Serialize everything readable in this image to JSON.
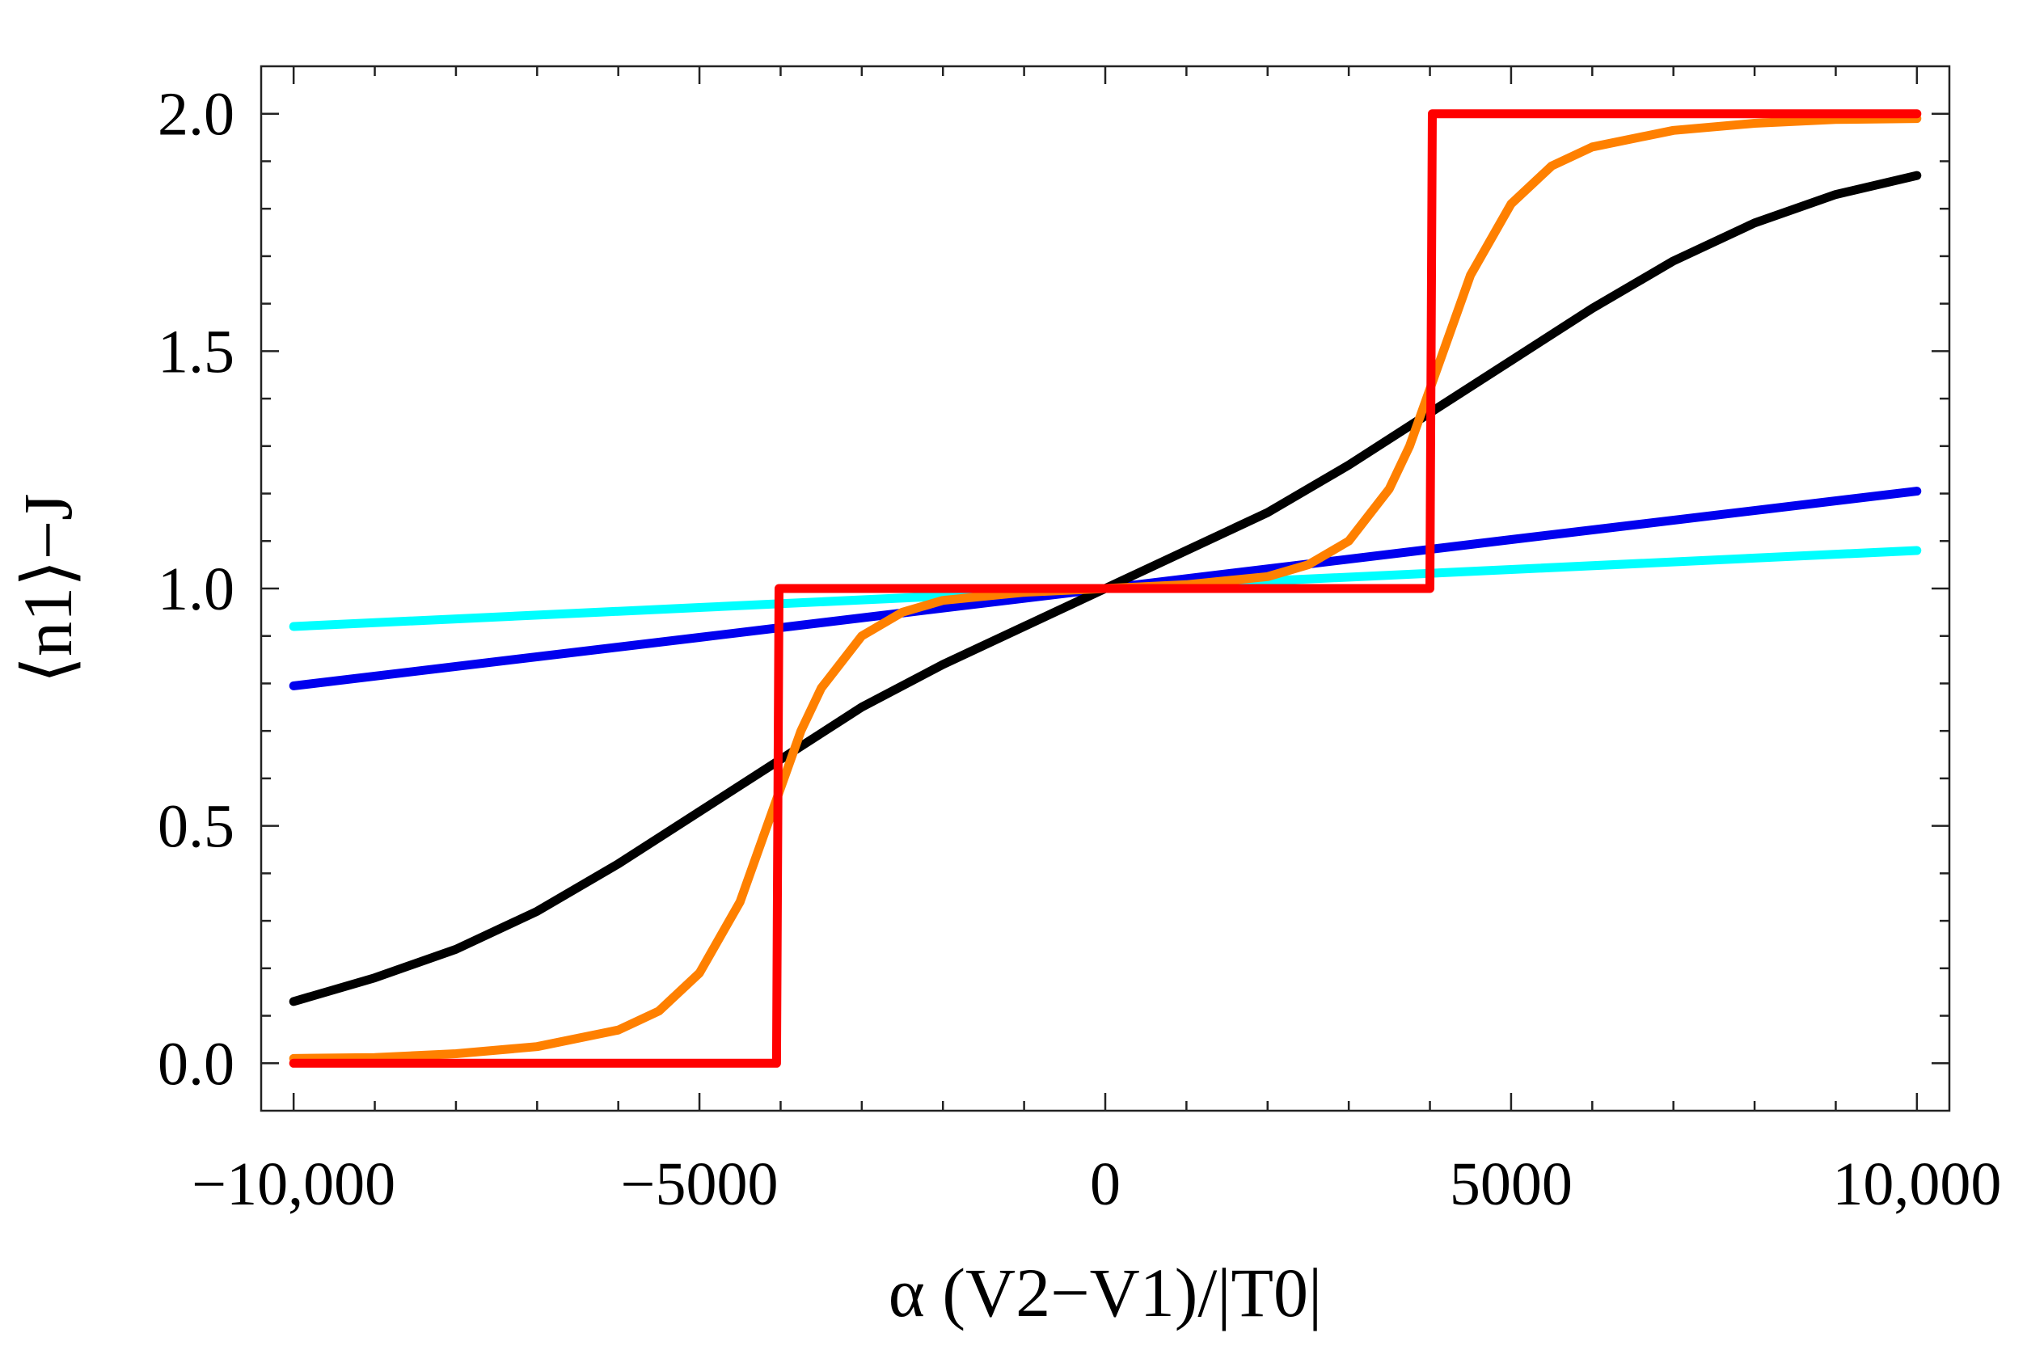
{
  "chart_data": {
    "type": "line",
    "title": "",
    "xlabel": "α (V2−V1)/|T0|",
    "ylabel": "⟨n1⟩−J",
    "xlim": [
      -10400,
      10400
    ],
    "ylim": [
      -0.1,
      2.1
    ],
    "x_ticks": [
      -10000,
      -5000,
      0,
      5000,
      10000
    ],
    "x_tick_labels": [
      "−10,000",
      "−5000",
      "0",
      "5000",
      "10,000"
    ],
    "y_ticks": [
      0.0,
      0.5,
      1.0,
      1.5,
      2.0
    ],
    "y_tick_labels": [
      "0.0",
      "0.5",
      "1.0",
      "1.5",
      "2.0"
    ],
    "series": [
      {
        "name": "cyan",
        "color": "#00ffff",
        "x": [
          -10000,
          -5000,
          0,
          5000,
          10000
        ],
        "y": [
          0.92,
          0.96,
          1.0,
          1.04,
          1.08
        ]
      },
      {
        "name": "blue",
        "color": "#0000ee",
        "x": [
          -10000,
          -5000,
          0,
          5000,
          10000
        ],
        "y": [
          0.795,
          0.897,
          1.0,
          1.103,
          1.205
        ]
      },
      {
        "name": "black",
        "color": "#000000",
        "x": [
          -10000,
          -9000,
          -8000,
          -7000,
          -6000,
          -5000,
          -4000,
          -3000,
          -2000,
          -1000,
          0,
          1000,
          2000,
          3000,
          4000,
          5000,
          6000,
          7000,
          8000,
          9000,
          10000
        ],
        "y": [
          0.13,
          0.18,
          0.24,
          0.32,
          0.42,
          0.53,
          0.64,
          0.75,
          0.84,
          0.92,
          1.0,
          1.08,
          1.16,
          1.26,
          1.37,
          1.48,
          1.59,
          1.69,
          1.77,
          1.83,
          1.87
        ]
      },
      {
        "name": "orange",
        "color": "#ff8000",
        "x": [
          -10000,
          -9000,
          -8000,
          -7000,
          -6000,
          -5500,
          -5000,
          -4500,
          -4250,
          -4000,
          -3750,
          -3500,
          -3000,
          -2500,
          -2000,
          -1000,
          0,
          1000,
          2000,
          2500,
          3000,
          3500,
          3750,
          4000,
          4250,
          4500,
          5000,
          5500,
          6000,
          7000,
          8000,
          9000,
          10000
        ],
        "y": [
          0.01,
          0.012,
          0.02,
          0.035,
          0.07,
          0.11,
          0.19,
          0.34,
          0.46,
          0.58,
          0.7,
          0.79,
          0.9,
          0.95,
          0.975,
          0.992,
          1.0,
          1.008,
          1.025,
          1.05,
          1.1,
          1.21,
          1.3,
          1.42,
          1.54,
          1.66,
          1.81,
          1.89,
          1.93,
          1.965,
          1.98,
          1.988,
          1.99
        ]
      },
      {
        "name": "red",
        "color": "#ff0000",
        "x": [
          -10000,
          -4050,
          -4020,
          4000,
          4030,
          10000
        ],
        "y": [
          0.0,
          0.0,
          1.0,
          1.0,
          2.0,
          2.0
        ]
      }
    ]
  }
}
